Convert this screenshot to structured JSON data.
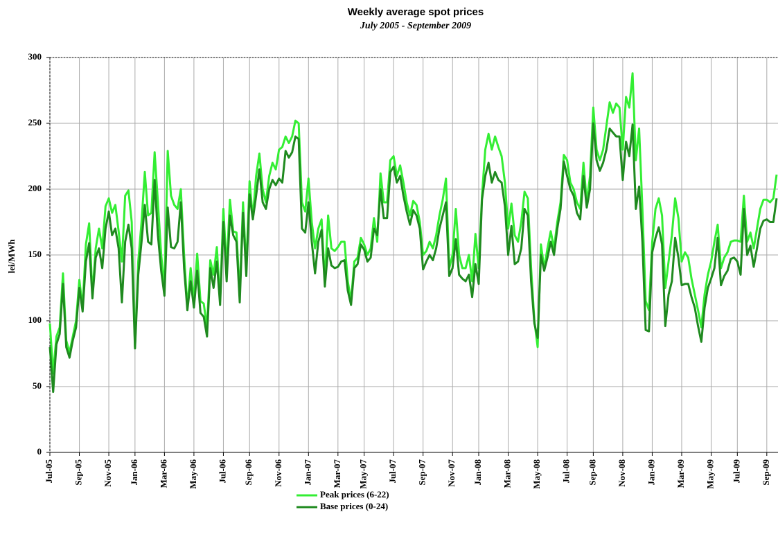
{
  "chart_data": {
    "type": "line",
    "title": "Weekly average spot prices",
    "subtitle": "July 2005 - September 2009",
    "y_label": "lei/MWh",
    "categories": [
      "Jul-05",
      null,
      null,
      null,
      null,
      null,
      null,
      null,
      null,
      "Sep-05",
      null,
      null,
      null,
      null,
      null,
      null,
      null,
      null,
      "Nov-05",
      null,
      null,
      null,
      null,
      null,
      null,
      null,
      "Jan-06",
      null,
      null,
      null,
      null,
      null,
      null,
      null,
      null,
      "Mar-06",
      null,
      null,
      null,
      null,
      null,
      null,
      null,
      null,
      "May-06",
      null,
      null,
      null,
      null,
      null,
      null,
      null,
      null,
      "Jul-06",
      null,
      null,
      null,
      null,
      null,
      null,
      null,
      "Sep-06",
      null,
      null,
      null,
      null,
      null,
      null,
      null,
      null,
      "Nov-06",
      null,
      null,
      null,
      null,
      null,
      null,
      null,
      null,
      "Jan-07",
      null,
      null,
      null,
      null,
      null,
      null,
      null,
      null,
      "Mar-07",
      null,
      null,
      null,
      null,
      null,
      null,
      null,
      "May-07",
      null,
      null,
      null,
      null,
      null,
      null,
      null,
      null,
      "Jul-07",
      null,
      null,
      null,
      null,
      null,
      null,
      null,
      null,
      "Sep-07",
      null,
      null,
      null,
      null,
      null,
      null,
      null,
      null,
      "Nov-07",
      null,
      null,
      null,
      null,
      null,
      null,
      null,
      "Jan-08",
      null,
      null,
      null,
      null,
      null,
      null,
      null,
      null,
      "Mar-08",
      null,
      null,
      null,
      null,
      null,
      null,
      null,
      null,
      "May-08",
      null,
      null,
      null,
      null,
      null,
      null,
      null,
      null,
      "Jul-08",
      null,
      null,
      null,
      null,
      null,
      null,
      null,
      "Sep-08",
      null,
      null,
      null,
      null,
      null,
      null,
      null,
      null,
      "Nov-08",
      null,
      null,
      null,
      null,
      null,
      null,
      null,
      null,
      "Jan-09",
      null,
      null,
      null,
      null,
      null,
      null,
      null,
      null,
      "Mar-09",
      null,
      null,
      null,
      null,
      null,
      null,
      null,
      null,
      "May-09",
      null,
      null,
      null,
      null,
      null,
      null,
      null,
      "Jul-09",
      null,
      null,
      null,
      null,
      null,
      null,
      null,
      null,
      "Sep-09",
      null,
      null,
      null
    ],
    "series": [
      {
        "name": "Peak prices (6-22)",
        "color": "#33ee33",
        "values": [
          98,
          60,
          88,
          95,
          136,
          85,
          76,
          88,
          100,
          131,
          110,
          158,
          174,
          120,
          155,
          170,
          155,
          187,
          193,
          182,
          188,
          168,
          145,
          195,
          199,
          175,
          80,
          145,
          175,
          213,
          180,
          182,
          228,
          190,
          150,
          125,
          229,
          195,
          188,
          185,
          200,
          150,
          110,
          140,
          115,
          151,
          115,
          113,
          95,
          146,
          135,
          156,
          115,
          185,
          140,
          192,
          168,
          167,
          120,
          190,
          140,
          206,
          178,
          210,
          227,
          200,
          190,
          210,
          220,
          215,
          230,
          232,
          240,
          235,
          240,
          252,
          250,
          190,
          183,
          208,
          175,
          155,
          170,
          177,
          130,
          180,
          155,
          153,
          156,
          160,
          160,
          130,
          115,
          145,
          148,
          163,
          158,
          150,
          155,
          178,
          160,
          212,
          190,
          190,
          222,
          225,
          210,
          218,
          205,
          190,
          180,
          191,
          188,
          175,
          150,
          153,
          160,
          155,
          165,
          180,
          192,
          208,
          140,
          150,
          185,
          150,
          140,
          140,
          150,
          130,
          166,
          140,
          195,
          230,
          242,
          230,
          240,
          232,
          225,
          205,
          170,
          189,
          165,
          160,
          175,
          198,
          193,
          140,
          100,
          80,
          158,
          140,
          155,
          168,
          155,
          175,
          190,
          226,
          222,
          205,
          200,
          190,
          185,
          220,
          190,
          210,
          262,
          230,
          222,
          230,
          248,
          266,
          258,
          265,
          262,
          230,
          270,
          262,
          288,
          222,
          246,
          185,
          115,
          108,
          160,
          185,
          193,
          180,
          125,
          145,
          165,
          193,
          178,
          145,
          152,
          148,
          132,
          120,
          108,
          95,
          120,
          135,
          145,
          160,
          173,
          140,
          148,
          152,
          160,
          161,
          161,
          160,
          195,
          160,
          167,
          155,
          170,
          185,
          192,
          192,
          190,
          193,
          211
        ]
      },
      {
        "name": "Base prices (0-24)",
        "color": "#1f8a1f",
        "values": [
          80,
          46,
          82,
          90,
          128,
          80,
          72,
          85,
          95,
          125,
          107,
          145,
          159,
          117,
          148,
          155,
          140,
          170,
          183,
          165,
          170,
          155,
          114,
          160,
          173,
          155,
          79,
          135,
          160,
          188,
          160,
          158,
          207,
          165,
          138,
          119,
          186,
          156,
          155,
          160,
          190,
          140,
          108,
          130,
          110,
          138,
          106,
          103,
          88,
          140,
          125,
          145,
          112,
          175,
          130,
          180,
          165,
          160,
          114,
          182,
          134,
          196,
          177,
          195,
          215,
          190,
          185,
          200,
          207,
          203,
          208,
          205,
          229,
          224,
          228,
          240,
          238,
          170,
          167,
          190,
          160,
          136,
          160,
          169,
          126,
          155,
          142,
          140,
          141,
          145,
          146,
          123,
          112,
          140,
          143,
          158,
          154,
          145,
          148,
          170,
          165,
          200,
          178,
          178,
          213,
          217,
          205,
          210,
          195,
          183,
          173,
          184,
          180,
          170,
          139,
          145,
          150,
          146,
          155,
          170,
          180,
          190,
          134,
          140,
          162,
          135,
          132,
          130,
          135,
          118,
          143,
          128,
          192,
          210,
          220,
          205,
          213,
          207,
          205,
          187,
          150,
          172,
          143,
          145,
          155,
          185,
          180,
          130,
          98,
          87,
          150,
          138,
          148,
          160,
          150,
          170,
          185,
          221,
          210,
          200,
          195,
          182,
          177,
          210,
          186,
          200,
          250,
          222,
          214,
          220,
          230,
          246,
          243,
          240,
          240,
          207,
          236,
          225,
          249,
          185,
          202,
          160,
          93,
          92,
          152,
          163,
          171,
          158,
          96,
          120,
          130,
          163,
          148,
          127,
          128,
          128,
          118,
          110,
          96,
          84,
          110,
          125,
          132,
          140,
          163,
          127,
          134,
          138,
          147,
          148,
          145,
          135,
          185,
          150,
          157,
          141,
          155,
          170,
          176,
          177,
          175,
          175,
          193
        ]
      }
    ],
    "ylim": [
      0,
      300
    ],
    "yticks": [
      0,
      50,
      100,
      150,
      200,
      250,
      300
    ],
    "grid": true,
    "legend": "bottom"
  }
}
